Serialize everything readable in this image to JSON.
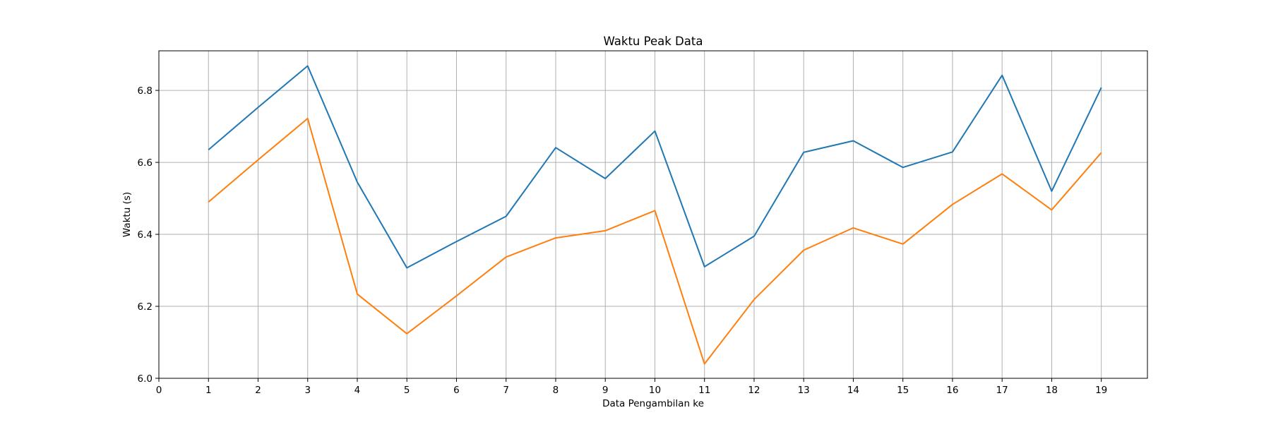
{
  "chart_data": {
    "type": "line",
    "title": "Waktu Peak Data",
    "xlabel": "Data Pengambilan ke",
    "ylabel": "Waktu (s)",
    "x": [
      1,
      2,
      3,
      4,
      5,
      6,
      7,
      8,
      9,
      10,
      11,
      12,
      13,
      14,
      15,
      16,
      17,
      18,
      19
    ],
    "xticks": [
      0,
      1,
      2,
      3,
      4,
      5,
      6,
      7,
      8,
      9,
      10,
      11,
      12,
      13,
      14,
      15,
      16,
      17,
      18,
      19
    ],
    "xlim": [
      0,
      19.93
    ],
    "yticks": [
      6.0,
      6.2,
      6.4,
      6.6,
      6.8
    ],
    "ytick_labels": [
      "6.0",
      "6.2",
      "6.4",
      "6.6",
      "6.8"
    ],
    "ylim": [
      6.0,
      6.91
    ],
    "grid": true,
    "legend": "none",
    "series": [
      {
        "color": "#1f77b4",
        "values": [
          6.635,
          6.753,
          6.868,
          6.545,
          6.307,
          6.38,
          6.45,
          6.641,
          6.555,
          6.687,
          6.31,
          6.395,
          6.628,
          6.66,
          6.586,
          6.629,
          6.842,
          6.52,
          6.808
        ]
      },
      {
        "color": "#ff7f0e",
        "values": [
          6.49,
          6.607,
          6.722,
          6.234,
          6.124,
          6.229,
          6.337,
          6.39,
          6.41,
          6.466,
          6.04,
          6.219,
          6.356,
          6.418,
          6.373,
          6.483,
          6.568,
          6.468,
          6.627
        ]
      }
    ]
  }
}
